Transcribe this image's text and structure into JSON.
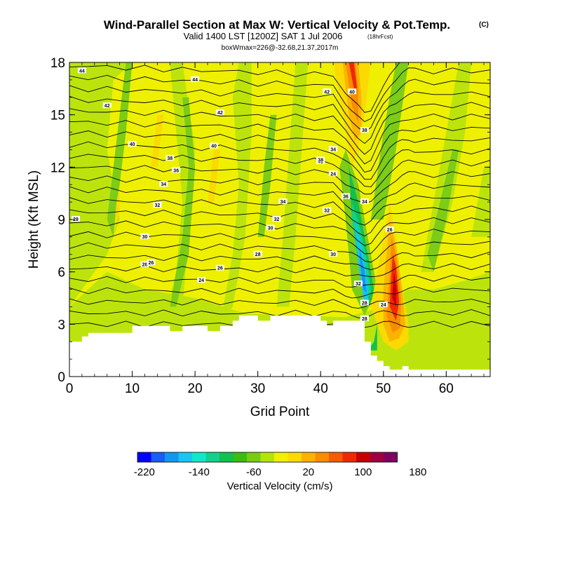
{
  "chart_data": {
    "type": "contour",
    "title": "Wind-Parallel Section at Max W: Vertical Velocity & Pot.Temp.",
    "title_mark": "(C)",
    "subtitle_main": "Valid 1400 LST [1200Z] SAT 1 Jul 2006",
    "subtitle_small": "(18hrFcst)",
    "subtitle_line2": "boxWmax=226@-32.68,21.37,2017m",
    "xlabel": "Grid Point",
    "ylabel": "Height (Kft MSL)",
    "xlim": [
      0,
      67
    ],
    "ylim": [
      0,
      18
    ],
    "x_ticks": [
      "0",
      "10",
      "20",
      "30",
      "40",
      "50",
      "60"
    ],
    "y_ticks": [
      "0",
      "3",
      "6",
      "9",
      "12",
      "15",
      "18"
    ],
    "colorbar": {
      "label": "Vertical Velocity (cm/s)",
      "tick_labels": [
        "-220",
        "-140",
        "-60",
        "20",
        "100",
        "180"
      ],
      "colors": [
        "#0000ff",
        "#1a5cf5",
        "#1496f0",
        "#14c8f0",
        "#10e8c8",
        "#10d28c",
        "#12c050",
        "#3cbc14",
        "#78cc14",
        "#b4e40a",
        "#f0f000",
        "#fada00",
        "#fab400",
        "#fa8c00",
        "#fa5a00",
        "#f02800",
        "#c80000",
        "#a00040",
        "#800060"
      ]
    },
    "terrain_kft": [
      [
        0,
        2
      ],
      [
        2,
        2
      ],
      [
        2,
        2.3
      ],
      [
        3,
        2.3
      ],
      [
        3,
        2.5
      ],
      [
        10,
        2.5
      ],
      [
        10,
        2.9
      ],
      [
        16,
        2.9
      ],
      [
        16,
        2.6
      ],
      [
        18,
        2.6
      ],
      [
        18,
        2.9
      ],
      [
        22,
        2.9
      ],
      [
        22,
        2.6
      ],
      [
        24,
        2.6
      ],
      [
        24,
        2.9
      ],
      [
        26,
        2.9
      ],
      [
        26,
        3.2
      ],
      [
        27,
        3.2
      ],
      [
        27,
        3.5
      ],
      [
        30,
        3.5
      ],
      [
        30,
        3.2
      ],
      [
        32,
        3.2
      ],
      [
        32,
        3.5
      ],
      [
        40,
        3.5
      ],
      [
        40,
        3.2
      ],
      [
        41,
        3.2
      ],
      [
        41,
        2.9
      ],
      [
        42,
        2.9
      ],
      [
        42,
        3.2
      ],
      [
        47,
        3.2
      ],
      [
        47,
        2.0
      ],
      [
        48,
        2.0
      ],
      [
        48,
        1.2
      ],
      [
        49,
        1.2
      ],
      [
        49,
        0.9
      ],
      [
        50,
        0.9
      ],
      [
        50,
        0.6
      ],
      [
        51,
        0.6
      ],
      [
        51,
        0.4
      ],
      [
        53,
        0.4
      ],
      [
        53,
        0.6
      ],
      [
        54,
        0.6
      ],
      [
        54,
        0.4
      ],
      [
        67,
        0.4
      ]
    ],
    "theta_labels": [
      "44",
      "44",
      "42",
      "42",
      "40",
      "40",
      "40",
      "38",
      "38",
      "36",
      "34",
      "34",
      "32",
      "32",
      "30",
      "30",
      "28",
      "28",
      "28",
      "26",
      "26",
      "24",
      "24",
      "42",
      "40",
      "38",
      "36",
      "34",
      "32",
      "34",
      "32",
      "30",
      "28",
      "28",
      "26",
      "24"
    ]
  }
}
